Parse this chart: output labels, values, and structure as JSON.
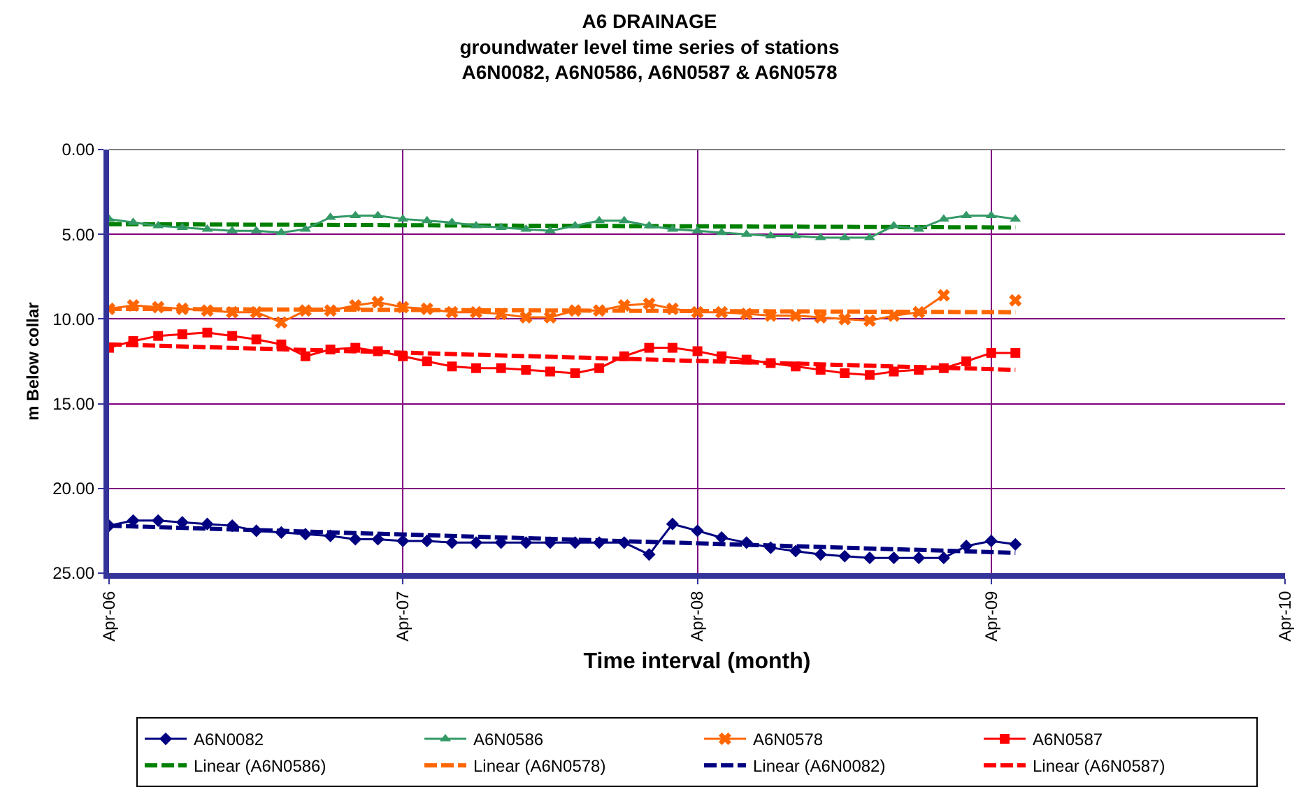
{
  "chart_data": {
    "type": "line",
    "title": "A6 DRAINAGE\ngroundwater level time series of stations\nA6N0082, A6N0586, A6N0587 & A6N0578",
    "xlabel": "Time interval (month)",
    "ylabel": "m Below collar",
    "x": [
      "2006-04",
      "2006-05",
      "2006-06",
      "2006-07",
      "2006-08",
      "2006-09",
      "2006-10",
      "2006-11",
      "2006-12",
      "2007-01",
      "2007-02",
      "2007-03",
      "2007-04",
      "2007-05",
      "2007-06",
      "2007-07",
      "2007-08",
      "2007-09",
      "2007-10",
      "2007-11",
      "2007-12",
      "2008-01",
      "2008-02",
      "2008-03",
      "2008-04",
      "2008-05",
      "2008-06",
      "2008-07",
      "2008-08",
      "2008-09",
      "2008-10",
      "2008-11",
      "2008-12",
      "2009-01",
      "2009-02",
      "2009-03",
      "2009-04",
      "2009-05"
    ],
    "series": [
      {
        "name": "A6N0082",
        "color": "#000080",
        "marker": "diamond",
        "values": [
          22.2,
          21.9,
          21.9,
          22.0,
          22.1,
          22.2,
          22.5,
          22.6,
          22.7,
          22.8,
          23.0,
          23.0,
          23.1,
          23.1,
          23.2,
          23.2,
          23.2,
          23.2,
          23.2,
          23.2,
          23.2,
          23.2,
          23.9,
          22.1,
          22.5,
          22.9,
          23.2,
          23.5,
          23.7,
          23.9,
          24.0,
          24.1,
          24.1,
          24.1,
          24.1,
          23.4,
          23.1,
          23.3
        ]
      },
      {
        "name": "A6N0586",
        "color": "#339966",
        "marker": "triangle",
        "values": [
          4.1,
          4.3,
          4.5,
          4.6,
          4.7,
          4.8,
          4.8,
          4.9,
          4.7,
          4.0,
          3.9,
          3.9,
          4.1,
          4.2,
          4.3,
          4.5,
          4.6,
          4.7,
          4.8,
          4.5,
          4.2,
          4.2,
          4.5,
          4.7,
          4.8,
          4.9,
          5.0,
          5.1,
          5.1,
          5.2,
          5.2,
          5.2,
          4.5,
          4.7,
          4.1,
          3.9,
          3.9,
          4.1
        ]
      },
      {
        "name": "A6N0578",
        "color": "#ff6600",
        "marker": "cross",
        "values": [
          9.4,
          9.2,
          9.3,
          9.4,
          9.5,
          9.6,
          9.6,
          10.2,
          9.5,
          9.5,
          9.2,
          9.0,
          9.3,
          9.4,
          9.6,
          9.6,
          9.7,
          9.9,
          9.9,
          9.5,
          9.5,
          9.2,
          9.1,
          9.4,
          9.6,
          9.6,
          9.7,
          9.8,
          9.8,
          9.9,
          10.0,
          10.1,
          9.8,
          9.6,
          8.6,
          null,
          null,
          8.9
        ]
      },
      {
        "name": "A6N0587",
        "color": "#ff0000",
        "marker": "square",
        "values": [
          11.7,
          11.3,
          11.0,
          10.9,
          10.8,
          11.0,
          11.2,
          11.5,
          12.2,
          11.8,
          11.7,
          11.9,
          12.2,
          12.5,
          12.8,
          12.9,
          12.9,
          13.0,
          13.1,
          13.2,
          12.9,
          12.2,
          11.7,
          11.7,
          11.9,
          12.2,
          12.4,
          12.6,
          12.8,
          13.0,
          13.2,
          13.3,
          13.1,
          13.0,
          12.9,
          12.5,
          12.0,
          12.0
        ]
      },
      {
        "name": "Linear (A6N0586)",
        "color": "#008000",
        "marker": "none",
        "line_style": "dashed",
        "x": [
          "2006-04",
          "2009-05"
        ],
        "values": [
          4.4,
          4.6
        ]
      },
      {
        "name": "Linear (A6N0578)",
        "color": "#ff6600",
        "marker": "none",
        "line_style": "dashed",
        "x": [
          "2006-04",
          "2009-05"
        ],
        "values": [
          9.4,
          9.6
        ]
      },
      {
        "name": "Linear (A6N0082)",
        "color": "#000080",
        "marker": "none",
        "line_style": "dashed",
        "x": [
          "2006-04",
          "2009-05"
        ],
        "values": [
          22.2,
          23.8
        ]
      },
      {
        "name": "Linear (A6N0587)",
        "color": "#ff0000",
        "marker": "none",
        "line_style": "dashed",
        "x": [
          "2006-04",
          "2009-05"
        ],
        "values": [
          11.5,
          13.0
        ]
      }
    ],
    "xlim": [
      "2006-04",
      "2010-04"
    ],
    "xticks": [
      {
        "value": "2006-04",
        "label": "Apr-06"
      },
      {
        "value": "2007-04",
        "label": "Apr-07"
      },
      {
        "value": "2008-04",
        "label": "Apr-08"
      },
      {
        "value": "2009-04",
        "label": "Apr-09"
      },
      {
        "value": "2010-04",
        "label": "Apr-10"
      }
    ],
    "ylim": [
      25,
      0
    ],
    "yticks": [
      {
        "value": 0,
        "label": "0.00"
      },
      {
        "value": 5,
        "label": "5.00"
      },
      {
        "value": 10,
        "label": "10.00"
      },
      {
        "value": 15,
        "label": "15.00"
      },
      {
        "value": 20,
        "label": "20.00"
      },
      {
        "value": 25,
        "label": "25.00"
      }
    ],
    "grid": true,
    "legend": "bottom"
  }
}
